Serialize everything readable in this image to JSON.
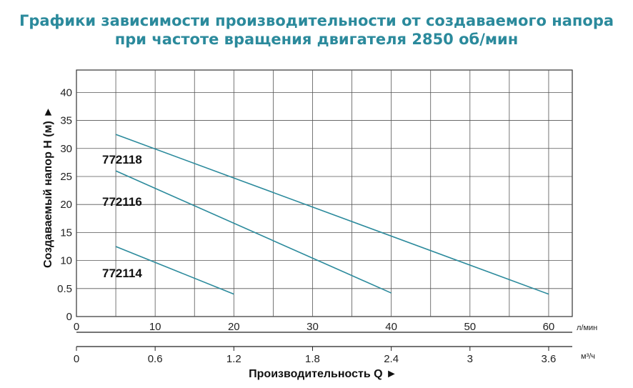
{
  "title_line1": "Графики зависимости производительности от создаваемого напора",
  "title_line2": "при частоте вращения двигателя 2850 об/мин",
  "chart_data": {
    "type": "line",
    "ylabel": "Создаваемый напор H (м) ►",
    "xlabel": "Производительность Q ►",
    "x_unit": "л/мин",
    "x2_unit": "м³/ч",
    "y_ticks": [
      "0",
      "0.5",
      "10",
      "15",
      "20",
      "25",
      "30",
      "35",
      "40"
    ],
    "x_ticks": [
      "0",
      "10",
      "20",
      "30",
      "40",
      "50",
      "60"
    ],
    "x2_ticks": [
      "0",
      "0.6",
      "1.2",
      "1.8",
      "2.4",
      "3",
      "3.6"
    ],
    "xlim": [
      0,
      63
    ],
    "ylim": [
      0,
      44
    ],
    "grid": true,
    "series": [
      {
        "name": "772118",
        "x": [
          5,
          60
        ],
        "y": [
          32.5,
          4
        ],
        "color": "#2b8a9c"
      },
      {
        "name": "772116",
        "x": [
          5,
          40
        ],
        "y": [
          26,
          4.2
        ],
        "color": "#2b8a9c"
      },
      {
        "name": "772114",
        "x": [
          5,
          20
        ],
        "y": [
          12.5,
          4
        ],
        "color": "#2b8a9c"
      }
    ]
  }
}
